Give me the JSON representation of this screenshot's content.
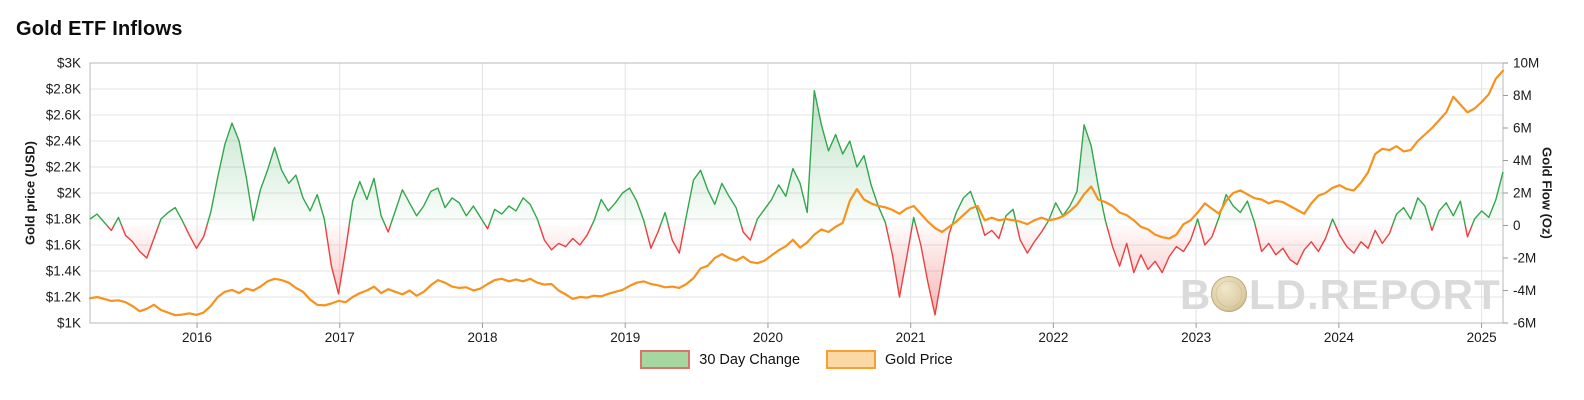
{
  "title": "Gold ETF Inflows",
  "legend": [
    {
      "label": "30 Day Change",
      "fill": "#a6d7a0",
      "border": "#e0716a"
    },
    {
      "label": "Gold Price",
      "fill": "#fdd8a7",
      "border": "#f5a02f"
    }
  ],
  "watermark": {
    "prefix": "B",
    "suffix": "LD.REPORT",
    "coin_icon": "gold-coin-icon",
    "text_color": "#dadada",
    "coin_colors": [
      "#f0e7cb",
      "#dbcda4",
      "#bfa97a"
    ]
  },
  "colors": {
    "gold_line": "#f6921e",
    "flow_positive": "#33a64c",
    "flow_negative": "#ea4040",
    "grid": "#e3e3e3",
    "plot_border": "#c4c4c4",
    "tick": "#9a9a9a",
    "tick_label": "#1a1a1a"
  },
  "chart_data": {
    "type": "line",
    "title": "Gold ETF Inflows",
    "grid": true,
    "legend_position": "bottom",
    "x_range": [
      2015.25,
      2025.15
    ],
    "x_ticks": [
      {
        "value": 2016,
        "label": "2016"
      },
      {
        "value": 2017,
        "label": "2017"
      },
      {
        "value": 2018,
        "label": "2018"
      },
      {
        "value": 2019,
        "label": "2019"
      },
      {
        "value": 2020,
        "label": "2020"
      },
      {
        "value": 2021,
        "label": "2021"
      },
      {
        "value": 2022,
        "label": "2022"
      },
      {
        "value": 2023,
        "label": "2023"
      },
      {
        "value": 2024,
        "label": "2024"
      },
      {
        "value": 2025,
        "label": "2025"
      }
    ],
    "left_axis": {
      "label": "Gold price (USD)",
      "range": [
        1000,
        3000
      ],
      "ticks": [
        {
          "value": 3000,
          "label": "$3K"
        },
        {
          "value": 2800,
          "label": "$2.8K"
        },
        {
          "value": 2600,
          "label": "$2.6K"
        },
        {
          "value": 2400,
          "label": "$2.4K"
        },
        {
          "value": 2200,
          "label": "$2.2K"
        },
        {
          "value": 2000,
          "label": "$2K"
        },
        {
          "value": 1800,
          "label": "$1.8K"
        },
        {
          "value": 1600,
          "label": "$1.6K"
        },
        {
          "value": 1400,
          "label": "$1.4K"
        },
        {
          "value": 1200,
          "label": "$1.2K"
        },
        {
          "value": 1000,
          "label": "$1K"
        }
      ]
    },
    "right_axis": {
      "label": "Gold Flow (Oz)",
      "range": [
        -6,
        10
      ],
      "ticks": [
        {
          "value": 10,
          "label": "10M"
        },
        {
          "value": 8,
          "label": "8M"
        },
        {
          "value": 6,
          "label": "6M"
        },
        {
          "value": 4,
          "label": "4M"
        },
        {
          "value": 2,
          "label": "2M"
        },
        {
          "value": 0,
          "label": "0"
        },
        {
          "value": -2,
          "label": "-2M"
        },
        {
          "value": -4,
          "label": "-4M"
        },
        {
          "value": -6,
          "label": "-6M"
        }
      ]
    },
    "series": [
      {
        "name": "30 Day Change",
        "axis": "right",
        "unit": "million oz",
        "x_start": 2015.25,
        "x_end": 2025.15,
        "values": [
          0.4,
          0.7,
          0.2,
          -0.3,
          0.5,
          -0.6,
          -1.0,
          -1.6,
          -2.0,
          -0.8,
          0.4,
          0.8,
          1.1,
          0.3,
          -0.6,
          -1.4,
          -0.7,
          0.8,
          3.0,
          5.0,
          6.3,
          5.2,
          3.0,
          0.3,
          2.2,
          3.4,
          4.8,
          3.4,
          2.6,
          3.1,
          1.7,
          0.9,
          1.9,
          0.4,
          -2.5,
          -4.2,
          -1.5,
          1.5,
          2.7,
          1.6,
          2.9,
          0.6,
          -0.4,
          0.9,
          2.2,
          1.4,
          0.6,
          1.2,
          2.1,
          2.3,
          1.1,
          1.7,
          1.4,
          0.6,
          1.2,
          0.5,
          -0.2,
          1.0,
          0.7,
          1.2,
          0.9,
          1.7,
          1.3,
          0.4,
          -0.9,
          -1.5,
          -1.1,
          -1.3,
          -0.8,
          -1.2,
          -0.6,
          0.3,
          1.6,
          0.9,
          1.4,
          2.0,
          2.3,
          1.5,
          0.3,
          -1.4,
          -0.4,
          0.8,
          -0.9,
          -1.7,
          0.6,
          2.8,
          3.4,
          2.2,
          1.3,
          2.6,
          1.8,
          1.1,
          -0.4,
          -0.9,
          0.4,
          1.0,
          1.6,
          2.5,
          1.8,
          3.5,
          2.6,
          0.8,
          8.3,
          6.2,
          4.6,
          5.6,
          4.4,
          5.2,
          3.6,
          4.3,
          2.5,
          1.2,
          0.2,
          -1.8,
          -4.4,
          -2.0,
          0.5,
          -1.2,
          -3.5,
          -5.5,
          -3.0,
          -0.5,
          0.8,
          1.7,
          2.1,
          0.9,
          -0.6,
          -0.3,
          -0.8,
          0.6,
          1.0,
          -0.9,
          -1.7,
          -1.0,
          -0.4,
          0.3,
          1.4,
          0.6,
          1.2,
          2.1,
          6.2,
          4.9,
          2.4,
          0.3,
          -1.3,
          -2.5,
          -1.1,
          -2.9,
          -1.8,
          -2.7,
          -2.2,
          -2.9,
          -1.9,
          -1.3,
          -1.6,
          -0.9,
          0.4,
          -1.2,
          -0.7,
          0.5,
          1.9,
          1.2,
          0.8,
          1.5,
          0.2,
          -1.6,
          -1.1,
          -1.8,
          -1.4,
          -2.1,
          -2.4,
          -1.5,
          -1.0,
          -1.6,
          -0.8,
          0.4,
          -0.6,
          -1.3,
          -1.7,
          -1.0,
          -1.4,
          -0.3,
          -1.1,
          -0.5,
          0.7,
          1.1,
          0.4,
          1.7,
          1.2,
          -0.3,
          0.9,
          1.4,
          0.6,
          1.5,
          -0.7,
          0.4,
          0.9,
          0.5,
          1.6,
          3.3
        ]
      },
      {
        "name": "Gold Price",
        "axis": "left",
        "unit": "USD",
        "x_start": 2015.25,
        "x_end": 2025.15,
        "values": [
          1190,
          1200,
          1185,
          1170,
          1175,
          1160,
          1130,
          1090,
          1110,
          1140,
          1100,
          1080,
          1060,
          1065,
          1075,
          1062,
          1080,
          1130,
          1200,
          1240,
          1255,
          1230,
          1265,
          1250,
          1280,
          1320,
          1340,
          1330,
          1310,
          1270,
          1240,
          1180,
          1140,
          1135,
          1150,
          1170,
          1160,
          1200,
          1230,
          1250,
          1280,
          1230,
          1260,
          1240,
          1220,
          1250,
          1210,
          1240,
          1290,
          1330,
          1310,
          1280,
          1270,
          1275,
          1250,
          1265,
          1300,
          1330,
          1340,
          1320,
          1335,
          1320,
          1340,
          1310,
          1295,
          1300,
          1250,
          1220,
          1185,
          1200,
          1195,
          1210,
          1205,
          1225,
          1240,
          1255,
          1285,
          1310,
          1320,
          1300,
          1290,
          1275,
          1280,
          1270,
          1300,
          1345,
          1420,
          1440,
          1500,
          1530,
          1500,
          1480,
          1510,
          1470,
          1460,
          1480,
          1520,
          1560,
          1590,
          1640,
          1580,
          1620,
          1680,
          1720,
          1700,
          1740,
          1770,
          1940,
          2030,
          1950,
          1920,
          1900,
          1890,
          1870,
          1840,
          1880,
          1900,
          1840,
          1780,
          1730,
          1700,
          1740,
          1780,
          1830,
          1880,
          1900,
          1790,
          1810,
          1790,
          1800,
          1790,
          1780,
          1760,
          1790,
          1810,
          1790,
          1800,
          1820,
          1860,
          1910,
          1990,
          2050,
          1950,
          1930,
          1900,
          1850,
          1830,
          1790,
          1740,
          1720,
          1680,
          1660,
          1650,
          1680,
          1760,
          1790,
          1850,
          1920,
          1880,
          1840,
          1940,
          2000,
          2020,
          1990,
          1960,
          1950,
          1920,
          1940,
          1930,
          1900,
          1870,
          1840,
          1920,
          1980,
          2000,
          2040,
          2060,
          2030,
          2020,
          2080,
          2160,
          2300,
          2340,
          2330,
          2360,
          2320,
          2330,
          2400,
          2450,
          2500,
          2560,
          2620,
          2740,
          2680,
          2620,
          2650,
          2700,
          2760,
          2880,
          2940
        ]
      }
    ]
  }
}
